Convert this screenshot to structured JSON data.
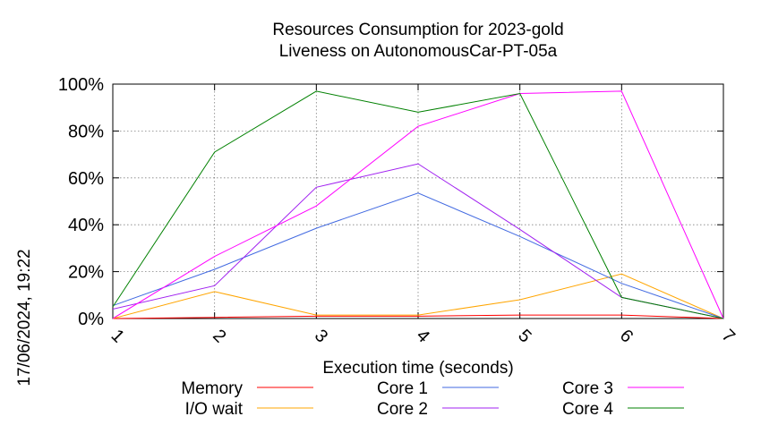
{
  "chart_data": {
    "type": "line",
    "title": [
      "Resources Consumption for 2023-gold",
      "Liveness on AutonomousCar-PT-05a"
    ],
    "xlabel": "Execution time (seconds)",
    "ylabel": "",
    "side_label": "17/06/2024, 19:22",
    "x": [
      1,
      2,
      3,
      4,
      5,
      6,
      7
    ],
    "x_ticks": [
      "1",
      "2",
      "3",
      "4",
      "5",
      "6",
      "7"
    ],
    "xlim": [
      1,
      7
    ],
    "ylim": [
      0,
      100
    ],
    "y_ticks": [
      "0%",
      "20%",
      "40%",
      "60%",
      "80%",
      "100%"
    ],
    "grid": true,
    "legend_placement": "bottom",
    "series": [
      {
        "name": "Memory",
        "color": "#ff0000",
        "values": [
          0,
          0.5,
          1,
          1,
          1.5,
          1.5,
          0
        ]
      },
      {
        "name": "I/O wait",
        "color": "#ffa500",
        "values": [
          0,
          11.5,
          1.5,
          1.5,
          8,
          19,
          0
        ]
      },
      {
        "name": "Core 1",
        "color": "#4169e1",
        "values": [
          5.5,
          21,
          38.5,
          53.5,
          35,
          15,
          0
        ]
      },
      {
        "name": "Core 2",
        "color": "#a020f0",
        "values": [
          4,
          14,
          56,
          66,
          38,
          9,
          0
        ]
      },
      {
        "name": "Core 3",
        "color": "#ff00ff",
        "values": [
          0,
          26.5,
          48,
          82,
          96,
          97,
          0
        ]
      },
      {
        "name": "Core 4",
        "color": "#008000",
        "values": [
          5,
          71,
          97,
          88,
          96,
          9,
          0
        ]
      }
    ]
  }
}
